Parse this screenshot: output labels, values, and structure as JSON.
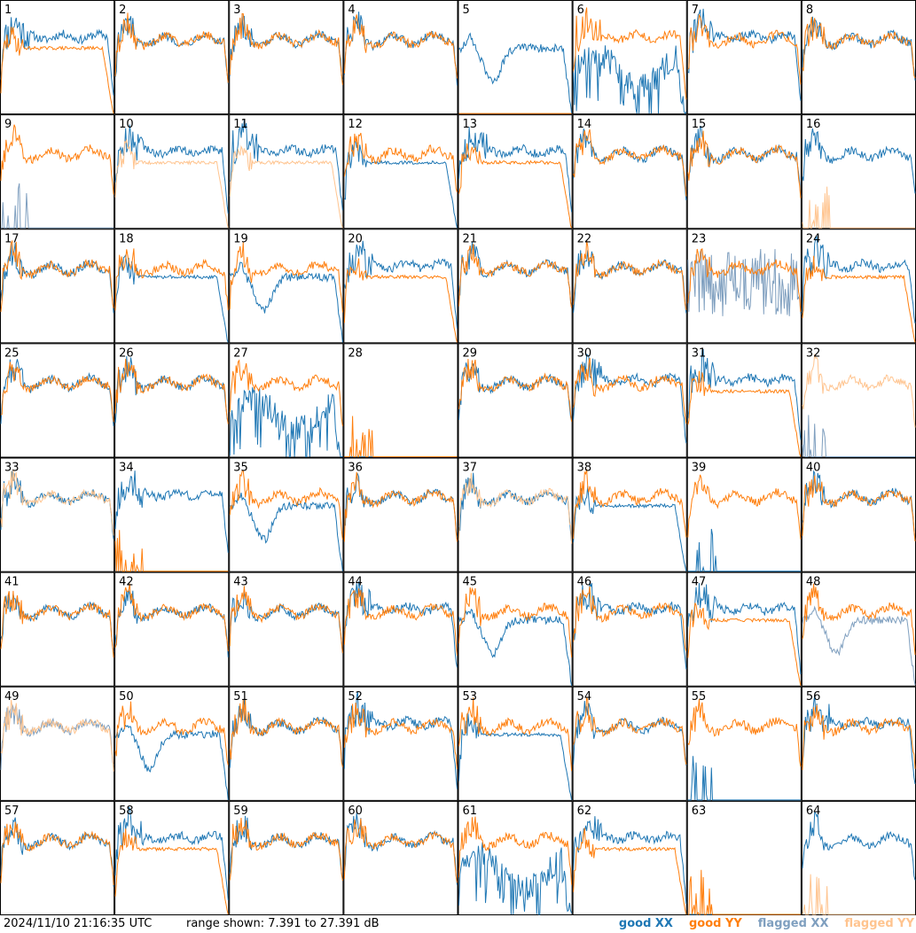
{
  "footer": {
    "timestamp": "2024/11/10 21:16:35 UTC",
    "range_text": "range shown: 7.391 to 27.391 dB"
  },
  "legend": [
    {
      "label": "good XX",
      "color": "#1f77b4"
    },
    {
      "label": "good YY",
      "color": "#ff7f0e"
    },
    {
      "label": "flagged XX",
      "color": "#7f9fbf"
    },
    {
      "label": "flagged YY",
      "color": "#ffc48f"
    }
  ],
  "chart_data": {
    "type": "line",
    "layout": "8x8 small multiples",
    "ylim": [
      7.391,
      27.391
    ],
    "y_unit": "dB",
    "title": "",
    "xlabel": "",
    "ylabel": "",
    "grid": false,
    "legend_position": "bottom-right",
    "panels": [
      {
        "label": "1",
        "xx": "good",
        "yy": "good",
        "xx_profile": "high",
        "yy_profile": "lowdrop"
      },
      {
        "label": "2",
        "xx": "good",
        "yy": "good",
        "xx_profile": "normal",
        "yy_profile": "normal"
      },
      {
        "label": "3",
        "xx": "good",
        "yy": "good",
        "xx_profile": "normal",
        "yy_profile": "normal"
      },
      {
        "label": "4",
        "xx": "good",
        "yy": "good",
        "xx_profile": "normal",
        "yy_profile": "normal"
      },
      {
        "label": "5",
        "xx": "good",
        "yy": "good",
        "xx_profile": "dip",
        "yy_profile": "flat0"
      },
      {
        "label": "6",
        "xx": "good",
        "yy": "good",
        "xx_profile": "bad",
        "yy_profile": "high"
      },
      {
        "label": "7",
        "xx": "good",
        "yy": "good",
        "xx_profile": "high",
        "yy_profile": "normal"
      },
      {
        "label": "8",
        "xx": "good",
        "yy": "good",
        "xx_profile": "normal",
        "yy_profile": "normal"
      },
      {
        "label": "9",
        "xx": "flagged",
        "yy": "good",
        "xx_profile": "spiky0",
        "yy_profile": "normal"
      },
      {
        "label": "10",
        "xx": "good",
        "yy": "flagged",
        "xx_profile": "high",
        "yy_profile": "lowdrop"
      },
      {
        "label": "11",
        "xx": "good",
        "yy": "flagged",
        "xx_profile": "high",
        "yy_profile": "lowdrop"
      },
      {
        "label": "12",
        "xx": "good",
        "yy": "good",
        "xx_profile": "lowdrop",
        "yy_profile": "normal"
      },
      {
        "label": "13",
        "xx": "good",
        "yy": "good",
        "xx_profile": "high",
        "yy_profile": "lowdrop"
      },
      {
        "label": "14",
        "xx": "good",
        "yy": "good",
        "xx_profile": "normal",
        "yy_profile": "normal"
      },
      {
        "label": "15",
        "xx": "good",
        "yy": "good",
        "xx_profile": "normal",
        "yy_profile": "normal"
      },
      {
        "label": "16",
        "xx": "good",
        "yy": "flagged",
        "xx_profile": "normal",
        "yy_profile": "spiky0"
      },
      {
        "label": "17",
        "xx": "good",
        "yy": "good",
        "xx_profile": "normal",
        "yy_profile": "normal"
      },
      {
        "label": "18",
        "xx": "good",
        "yy": "good",
        "xx_profile": "lowdrop",
        "yy_profile": "normal"
      },
      {
        "label": "19",
        "xx": "good",
        "yy": "good",
        "xx_profile": "dip",
        "yy_profile": "normal"
      },
      {
        "label": "20",
        "xx": "good",
        "yy": "good",
        "xx_profile": "high",
        "yy_profile": "lowdrop"
      },
      {
        "label": "21",
        "xx": "good",
        "yy": "good",
        "xx_profile": "normal",
        "yy_profile": "normal"
      },
      {
        "label": "22",
        "xx": "good",
        "yy": "good",
        "xx_profile": "normal",
        "yy_profile": "normal"
      },
      {
        "label": "23",
        "xx": "flagged",
        "yy": "good",
        "xx_profile": "noisy",
        "yy_profile": "normal"
      },
      {
        "label": "24",
        "xx": "good",
        "yy": "good",
        "xx_profile": "high",
        "yy_profile": "lowdrop"
      },
      {
        "label": "25",
        "xx": "good",
        "yy": "good",
        "xx_profile": "normal",
        "yy_profile": "normal"
      },
      {
        "label": "26",
        "xx": "good",
        "yy": "good",
        "xx_profile": "normal",
        "yy_profile": "normal"
      },
      {
        "label": "27",
        "xx": "good",
        "yy": "good",
        "xx_profile": "bad",
        "yy_profile": "normal"
      },
      {
        "label": "28",
        "xx": "good",
        "yy": "good",
        "xx_profile": "flat0",
        "yy_profile": "spiky0"
      },
      {
        "label": "29",
        "xx": "good",
        "yy": "good",
        "xx_profile": "normal",
        "yy_profile": "normal"
      },
      {
        "label": "30",
        "xx": "good",
        "yy": "good",
        "xx_profile": "high",
        "yy_profile": "normal"
      },
      {
        "label": "31",
        "xx": "good",
        "yy": "good",
        "xx_profile": "high",
        "yy_profile": "lowdrop"
      },
      {
        "label": "32",
        "xx": "flagged",
        "yy": "flagged",
        "xx_profile": "spiky0",
        "yy_profile": "normal"
      },
      {
        "label": "33",
        "xx": "good",
        "yy": "flagged",
        "xx_profile": "normal",
        "yy_profile": "normal"
      },
      {
        "label": "34",
        "xx": "good",
        "yy": "good",
        "xx_profile": "high",
        "yy_profile": "spiky0"
      },
      {
        "label": "35",
        "xx": "good",
        "yy": "good",
        "xx_profile": "dip",
        "yy_profile": "normal"
      },
      {
        "label": "36",
        "xx": "good",
        "yy": "good",
        "xx_profile": "normal",
        "yy_profile": "normal"
      },
      {
        "label": "37",
        "xx": "good",
        "yy": "flagged",
        "xx_profile": "normal",
        "yy_profile": "normal"
      },
      {
        "label": "38",
        "xx": "good",
        "yy": "good",
        "xx_profile": "lowdrop",
        "yy_profile": "normal"
      },
      {
        "label": "39",
        "xx": "good",
        "yy": "good",
        "xx_profile": "spiky0",
        "yy_profile": "normal"
      },
      {
        "label": "40",
        "xx": "good",
        "yy": "good",
        "xx_profile": "normal",
        "yy_profile": "normal"
      },
      {
        "label": "41",
        "xx": "good",
        "yy": "good",
        "xx_profile": "normal",
        "yy_profile": "normal"
      },
      {
        "label": "42",
        "xx": "good",
        "yy": "good",
        "xx_profile": "normal",
        "yy_profile": "normal"
      },
      {
        "label": "43",
        "xx": "good",
        "yy": "good",
        "xx_profile": "normal",
        "yy_profile": "normal"
      },
      {
        "label": "44",
        "xx": "good",
        "yy": "good",
        "xx_profile": "high",
        "yy_profile": "normal"
      },
      {
        "label": "45",
        "xx": "good",
        "yy": "good",
        "xx_profile": "dip",
        "yy_profile": "normal"
      },
      {
        "label": "46",
        "xx": "good",
        "yy": "good",
        "xx_profile": "high",
        "yy_profile": "normal"
      },
      {
        "label": "47",
        "xx": "good",
        "yy": "good",
        "xx_profile": "high",
        "yy_profile": "lowdrop"
      },
      {
        "label": "48",
        "xx": "flagged",
        "yy": "good",
        "xx_profile": "dip",
        "yy_profile": "normal"
      },
      {
        "label": "49",
        "xx": "flagged",
        "yy": "flagged",
        "xx_profile": "normal",
        "yy_profile": "normal"
      },
      {
        "label": "50",
        "xx": "good",
        "yy": "good",
        "xx_profile": "dip",
        "yy_profile": "normal"
      },
      {
        "label": "51",
        "xx": "good",
        "yy": "good",
        "xx_profile": "normal",
        "yy_profile": "normal"
      },
      {
        "label": "52",
        "xx": "good",
        "yy": "good",
        "xx_profile": "high",
        "yy_profile": "normal"
      },
      {
        "label": "53",
        "xx": "good",
        "yy": "good",
        "xx_profile": "lowdrop",
        "yy_profile": "normal"
      },
      {
        "label": "54",
        "xx": "good",
        "yy": "good",
        "xx_profile": "normal",
        "yy_profile": "normal"
      },
      {
        "label": "55",
        "xx": "good",
        "yy": "good",
        "xx_profile": "spiky0",
        "yy_profile": "normal"
      },
      {
        "label": "56",
        "xx": "good",
        "yy": "good",
        "xx_profile": "high",
        "yy_profile": "normal"
      },
      {
        "label": "57",
        "xx": "good",
        "yy": "good",
        "xx_profile": "normal",
        "yy_profile": "normal"
      },
      {
        "label": "58",
        "xx": "good",
        "yy": "good",
        "xx_profile": "high",
        "yy_profile": "lowdrop"
      },
      {
        "label": "59",
        "xx": "good",
        "yy": "good",
        "xx_profile": "normal",
        "yy_profile": "normal"
      },
      {
        "label": "60",
        "xx": "good",
        "yy": "good",
        "xx_profile": "normal",
        "yy_profile": "normal"
      },
      {
        "label": "61",
        "xx": "good",
        "yy": "good",
        "xx_profile": "bad",
        "yy_profile": "normal"
      },
      {
        "label": "62",
        "xx": "good",
        "yy": "good",
        "xx_profile": "high",
        "yy_profile": "lowdrop"
      },
      {
        "label": "63",
        "xx": "good",
        "yy": "good",
        "xx_profile": "flat0",
        "yy_profile": "spiky0"
      },
      {
        "label": "64",
        "xx": "good",
        "yy": "flagged",
        "xx_profile": "normal",
        "yy_profile": "spiky0"
      }
    ]
  }
}
